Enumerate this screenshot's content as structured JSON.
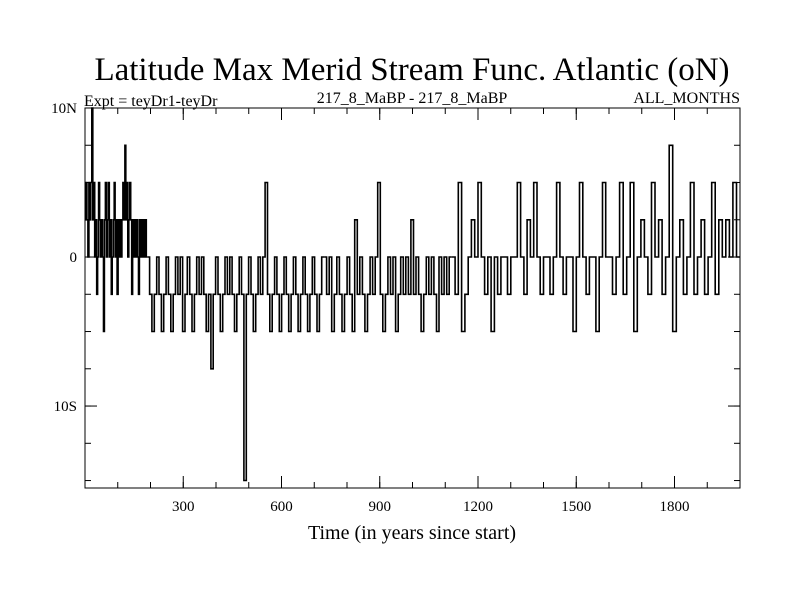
{
  "chart_data": {
    "type": "line",
    "title": "Latitude Max Merid Stream Func. Atlantic (oN)",
    "subtitle_left": "Expt = teyDr1-teyDr",
    "subtitle_center": "217_8_MaBP - 217_8_MaBP",
    "subtitle_right": "ALL_MONTHS",
    "xlabel": "Time (in years since start)",
    "ylabel": "",
    "xlim": [
      0,
      2000
    ],
    "ylim": [
      -15.5,
      10
    ],
    "x_ticks": [
      300,
      600,
      900,
      1200,
      1500,
      1800
    ],
    "x_tick_labels": [
      "300",
      "600",
      "900",
      "1200",
      "1500",
      "1800"
    ],
    "x_minor_step": 100,
    "y_ticks": [
      10,
      0,
      -10
    ],
    "y_tick_labels": [
      "10N",
      "0",
      "10S"
    ],
    "y_minor_step": 2.5,
    "grid": false,
    "segments": [
      {
        "start": 0,
        "end": 190,
        "values": [
          2.5,
          5,
          2.5,
          0,
          5,
          2.5,
          5,
          10,
          2.5,
          5,
          0,
          2.5,
          -2.5,
          0,
          5,
          2.5,
          0,
          2.5,
          0,
          -5,
          2.5,
          5,
          0,
          2.5,
          5,
          0,
          2.5,
          -2.5,
          0,
          2.5,
          5,
          0,
          2.5,
          -2.5,
          2.5,
          0,
          2.5,
          0,
          2.5,
          5,
          2.5,
          7.5,
          2.5,
          5,
          0,
          2.5,
          5,
          2.5,
          -2.5,
          2.5,
          0,
          2.5,
          0,
          2.5,
          0,
          -2.5,
          2.5,
          0,
          2.5,
          0,
          2.5,
          0,
          2.5,
          0
        ]
      },
      {
        "start": 190,
        "end": 730,
        "values": [
          0,
          -2.5,
          -5,
          -2.5,
          0,
          -2.5,
          -5,
          -2.5,
          0,
          -2.5,
          -5,
          -2.5,
          0,
          -2.5,
          0,
          -5,
          -2.5,
          0,
          -2.5,
          -5,
          -2.5,
          0,
          -2.5,
          0,
          -2.5,
          -5,
          -2.5,
          -7.5,
          -2.5,
          0,
          -2.5,
          -5,
          -2.5,
          0,
          -2.5,
          0,
          -2.5,
          -5,
          -2.5,
          0,
          -2.5,
          -15,
          -2.5,
          0,
          -2.5,
          -5,
          -2.5,
          0,
          -2.5,
          0,
          5,
          -2.5,
          -5,
          -2.5,
          0,
          -2.5,
          -5,
          -2.5,
          0,
          -2.5,
          -5,
          -2.5,
          0,
          -2.5,
          -5,
          -2.5,
          0,
          -2.5,
          -5,
          -2.5,
          0,
          -2.5,
          -5,
          -2.5,
          0
        ]
      },
      {
        "start": 730,
        "end": 1120,
        "values": [
          0,
          -2.5,
          0,
          -5,
          -2.5,
          0,
          -2.5,
          -5,
          -2.5,
          0,
          -2.5,
          -5,
          2.5,
          -2.5,
          0,
          -2.5,
          -5,
          -2.5,
          0,
          -2.5,
          0,
          5,
          -2.5,
          -5,
          -2.5,
          0,
          -2.5,
          0,
          -5,
          -2.5,
          0,
          -2.5,
          0,
          -2.5,
          2.5,
          -2.5,
          0,
          -2.5,
          -5,
          -2.5,
          0,
          -2.5,
          0,
          -2.5,
          -5,
          0,
          -2.5,
          0,
          -2.5,
          0
        ]
      },
      {
        "start": 1120,
        "end": 1600,
        "values": [
          0,
          -2.5,
          5,
          -5,
          -2.5,
          0,
          2.5,
          0,
          5,
          0,
          -2.5,
          0,
          -5,
          0,
          -2.5,
          0,
          0,
          -2.5,
          0,
          0,
          5,
          0,
          -2.5,
          2.5,
          0,
          5,
          0,
          -2.5,
          0,
          0,
          -2.5,
          0,
          5,
          0,
          -2.5,
          0,
          0,
          -5,
          0,
          5,
          0,
          -2.5,
          0,
          0,
          -5,
          0,
          5,
          0
        ]
      },
      {
        "start": 1600,
        "end": 2000,
        "values": [
          0,
          -2.5,
          0,
          5,
          -2.5,
          0,
          5,
          -5,
          0,
          2.5,
          0,
          -2.5,
          5,
          0,
          2.5,
          -2.5,
          0,
          7.5,
          -5,
          0,
          2.5,
          -2.5,
          0,
          5,
          -2.5,
          0,
          2.5,
          -2.5,
          0,
          5,
          -2.5,
          2.5,
          0,
          2.5,
          0,
          5,
          0
        ]
      }
    ]
  }
}
